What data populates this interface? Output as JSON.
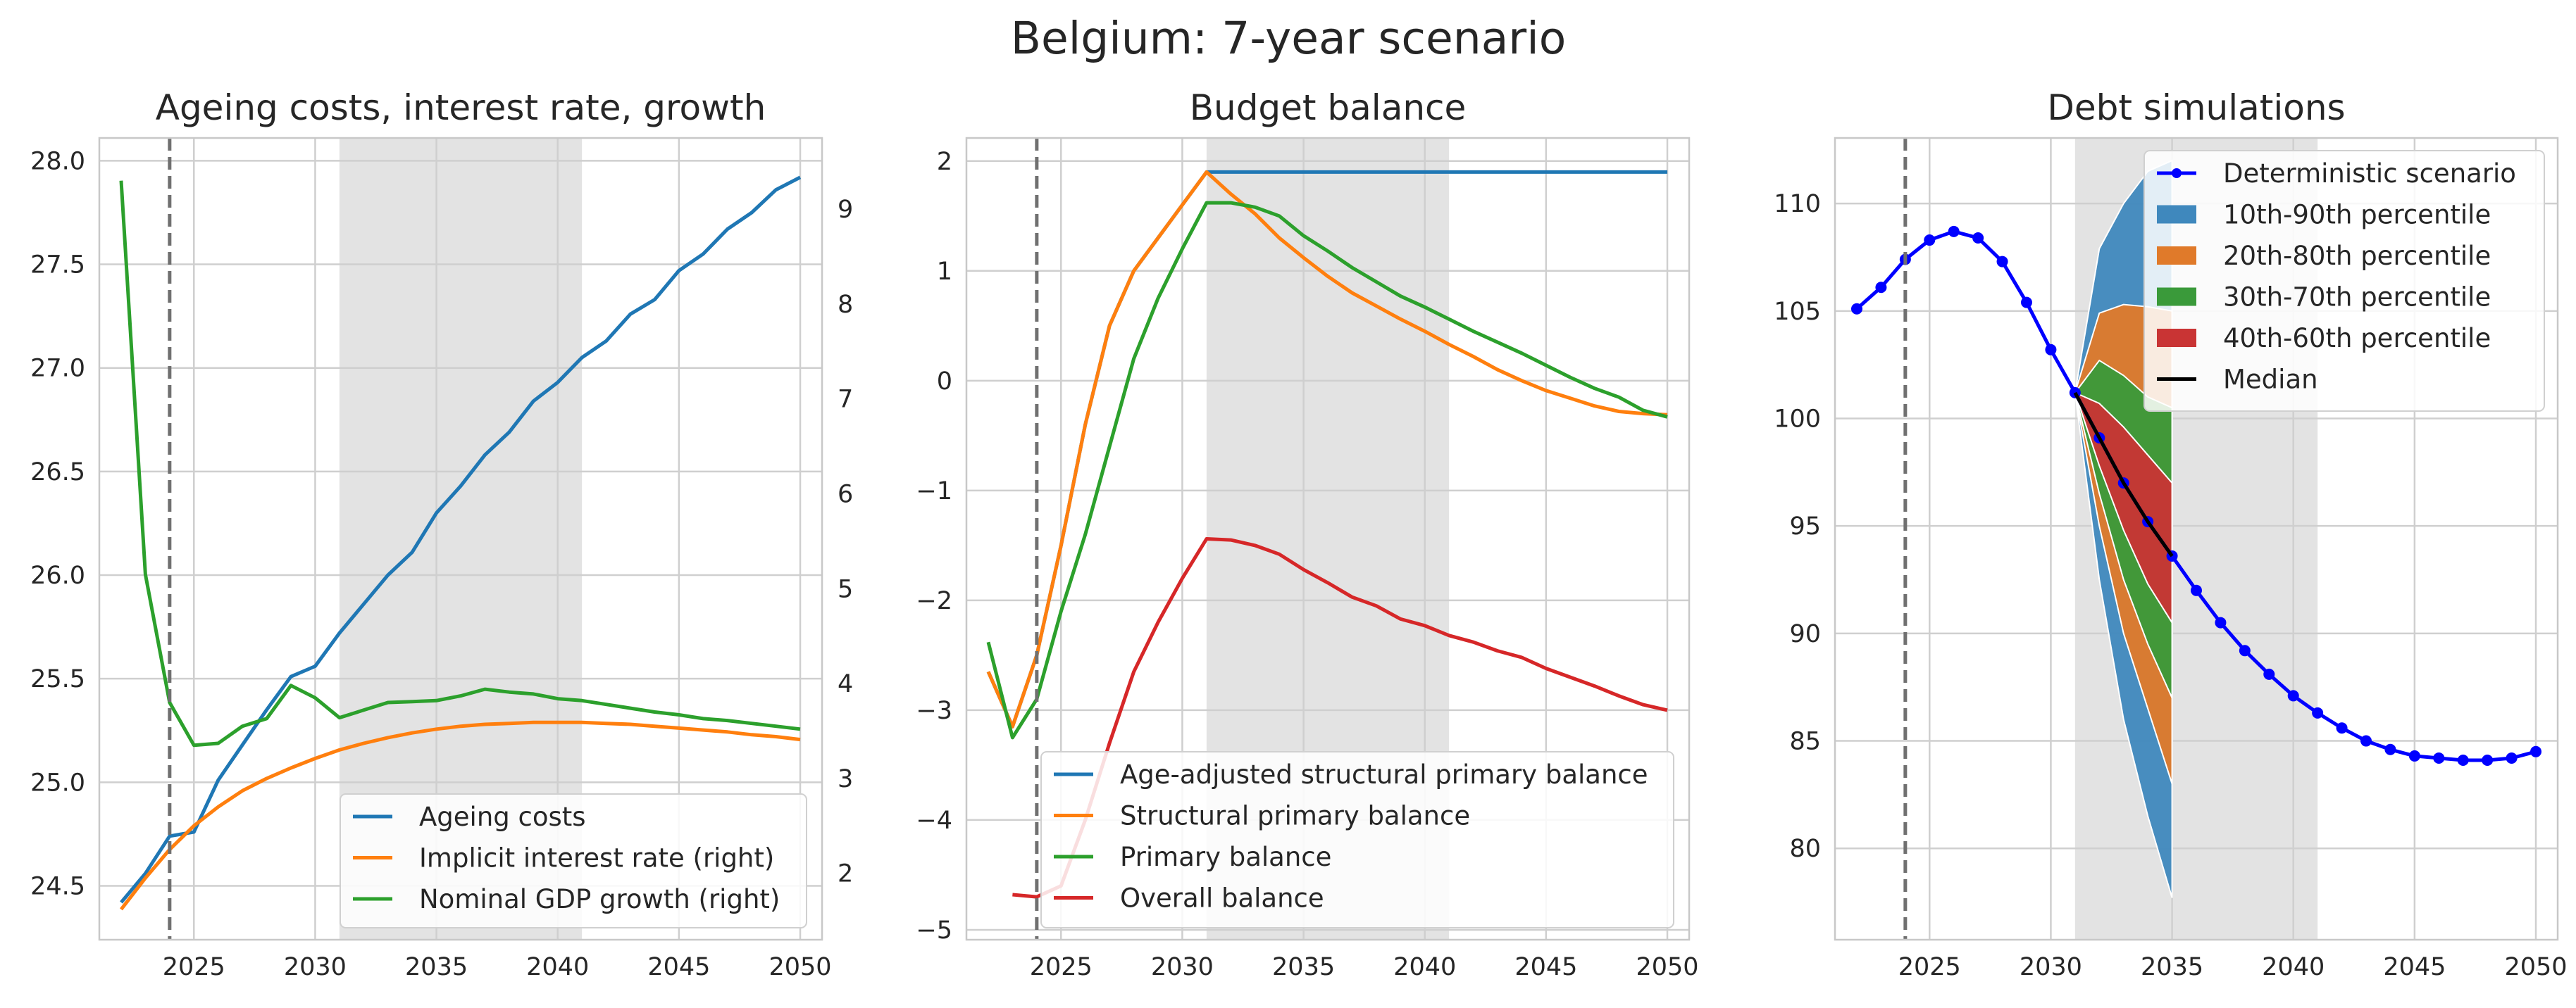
{
  "suptitle": "Belgium: 7-year scenario",
  "chart_data": [
    {
      "type": "line",
      "title": "Ageing costs, interest rate, growth",
      "x": [
        2022,
        2023,
        2024,
        2025,
        2026,
        2027,
        2028,
        2029,
        2030,
        2031,
        2032,
        2033,
        2034,
        2035,
        2036,
        2037,
        2038,
        2039,
        2040,
        2041,
        2042,
        2043,
        2044,
        2045,
        2046,
        2047,
        2048,
        2049,
        2050
      ],
      "xticks": [
        2025,
        2030,
        2035,
        2040,
        2045,
        2050
      ],
      "xlim": [
        2021.1,
        2050.9
      ],
      "ylim": [
        24.24,
        28.11
      ],
      "yticks": [
        "24.5",
        "25.0",
        "25.5",
        "26.0",
        "26.5",
        "27.0",
        "27.5",
        "28.0"
      ],
      "y2lim": [
        1.3,
        9.75
      ],
      "y2ticks": [
        "2",
        "3",
        "4",
        "5",
        "6",
        "7",
        "8",
        "9"
      ],
      "shade": [
        2031,
        2041
      ],
      "vline": 2024,
      "grid": true,
      "legend_position": "lower right",
      "series": [
        {
          "name": "Ageing costs",
          "axis": "left",
          "color": "#1f77b4",
          "values": [
            24.42,
            24.56,
            24.74,
            24.76,
            25.01,
            25.18,
            25.35,
            25.51,
            25.56,
            25.72,
            25.86,
            26.0,
            26.11,
            26.3,
            26.43,
            26.58,
            26.69,
            26.84,
            26.93,
            27.05,
            27.13,
            27.26,
            27.33,
            27.47,
            27.55,
            27.67,
            27.75,
            27.86,
            27.92
          ]
        },
        {
          "name": "Implicit interest rate (right)",
          "axis": "right",
          "color": "#ff7f0e",
          "values": [
            1.62,
            1.95,
            2.25,
            2.5,
            2.7,
            2.87,
            3.0,
            3.11,
            3.21,
            3.3,
            3.37,
            3.43,
            3.48,
            3.52,
            3.55,
            3.57,
            3.58,
            3.59,
            3.59,
            3.59,
            3.58,
            3.57,
            3.55,
            3.53,
            3.51,
            3.49,
            3.46,
            3.44,
            3.41
          ]
        },
        {
          "name": "Nominal GDP growth (right)",
          "axis": "right",
          "color": "#2ca02c",
          "values": [
            9.3,
            5.15,
            3.8,
            3.35,
            3.37,
            3.55,
            3.63,
            3.98,
            3.85,
            3.64,
            3.72,
            3.8,
            3.81,
            3.82,
            3.87,
            3.94,
            3.91,
            3.89,
            3.84,
            3.82,
            3.78,
            3.74,
            3.7,
            3.67,
            3.63,
            3.61,
            3.58,
            3.55,
            3.52
          ]
        }
      ]
    },
    {
      "type": "line",
      "title": "Budget balance",
      "x": [
        2022,
        2023,
        2024,
        2025,
        2026,
        2027,
        2028,
        2029,
        2030,
        2031,
        2032,
        2033,
        2034,
        2035,
        2036,
        2037,
        2038,
        2039,
        2040,
        2041,
        2042,
        2043,
        2044,
        2045,
        2046,
        2047,
        2048,
        2049,
        2050
      ],
      "xticks": [
        2025,
        2030,
        2035,
        2040,
        2045,
        2050
      ],
      "xlim": [
        2021.1,
        2050.9
      ],
      "ylim": [
        -5.09,
        2.21
      ],
      "yticks": [
        "−5",
        "−4",
        "−3",
        "−2",
        "−1",
        "0",
        "1",
        "2"
      ],
      "shade": [
        2031,
        2041
      ],
      "vline": 2024,
      "grid": true,
      "legend_position": "lower right",
      "series": [
        {
          "name": "Age-adjusted structural primary balance",
          "color": "#1f77b4",
          "values": [
            -2.65,
            -3.15,
            -2.5,
            -1.5,
            -0.4,
            0.5,
            1.0,
            1.3,
            1.6,
            1.9,
            1.9,
            1.9,
            1.9,
            1.9,
            1.9,
            1.9,
            1.9,
            1.9,
            1.9,
            1.9,
            1.9,
            1.9,
            1.9,
            1.9,
            1.9,
            1.9,
            1.9,
            1.9,
            1.9
          ]
        },
        {
          "name": "Structural primary balance",
          "color": "#ff7f0e",
          "values": [
            -2.65,
            -3.15,
            -2.5,
            -1.5,
            -0.4,
            0.5,
            1.0,
            1.3,
            1.6,
            1.9,
            1.7,
            1.52,
            1.3,
            1.12,
            0.95,
            0.8,
            0.68,
            0.56,
            0.45,
            0.33,
            0.22,
            0.1,
            0.0,
            -0.09,
            -0.16,
            -0.23,
            -0.28,
            -0.3,
            -0.31
          ]
        },
        {
          "name": "Primary balance",
          "color": "#2ca02c",
          "values": [
            -2.38,
            -3.25,
            -2.9,
            -2.1,
            -1.4,
            -0.6,
            0.2,
            0.75,
            1.2,
            1.62,
            1.62,
            1.58,
            1.5,
            1.32,
            1.18,
            1.03,
            0.9,
            0.77,
            0.67,
            0.56,
            0.45,
            0.35,
            0.25,
            0.14,
            0.03,
            -0.07,
            -0.15,
            -0.27,
            -0.33
          ]
        },
        {
          "name": "Overall balance",
          "color": "#d62728",
          "values": [
            null,
            -4.68,
            -4.7,
            -4.6,
            -4.0,
            -3.3,
            -2.65,
            -2.2,
            -1.8,
            -1.44,
            -1.45,
            -1.5,
            -1.58,
            -1.72,
            -1.84,
            -1.97,
            -2.05,
            -2.17,
            -2.23,
            -2.32,
            -2.38,
            -2.46,
            -2.52,
            -2.62,
            -2.7,
            -2.78,
            -2.87,
            -2.95,
            -3.0
          ]
        }
      ]
    },
    {
      "type": "line",
      "title": "Debt simulations",
      "x": [
        2022,
        2023,
        2024,
        2025,
        2026,
        2027,
        2028,
        2029,
        2030,
        2031,
        2032,
        2033,
        2034,
        2035,
        2036,
        2037,
        2038,
        2039,
        2040,
        2041,
        2042,
        2043,
        2044,
        2045,
        2046,
        2047,
        2048,
        2049,
        2050
      ],
      "xticks": [
        2025,
        2030,
        2035,
        2040,
        2045,
        2050
      ],
      "xlim": [
        2021.1,
        2050.9
      ],
      "ylim": [
        75.75,
        113.05
      ],
      "yticks": [
        "80",
        "85",
        "90",
        "95",
        "100",
        "105",
        "110"
      ],
      "shade": [
        2031,
        2041
      ],
      "vline": 2024,
      "grid": true,
      "legend_position": "upper right",
      "series": [
        {
          "name": "Deterministic scenario",
          "color": "#0000ff",
          "marker": "o",
          "values": [
            105.1,
            106.1,
            107.4,
            108.3,
            108.7,
            108.4,
            107.3,
            105.4,
            103.2,
            101.2,
            99.1,
            97.0,
            95.2,
            93.6,
            92.0,
            90.5,
            89.2,
            88.1,
            87.1,
            86.3,
            85.6,
            85.0,
            84.6,
            84.3,
            84.2,
            84.1,
            84.1,
            84.2,
            84.5
          ]
        },
        {
          "name": "Median",
          "color": "#000000",
          "x": [
            2031,
            2032,
            2033,
            2034,
            2035
          ],
          "values": [
            101.2,
            99.1,
            97.0,
            95.2,
            93.6
          ]
        }
      ],
      "fan": {
        "x": [
          2031,
          2032,
          2033,
          2034,
          2035
        ],
        "bands": [
          {
            "name": "10th-90th percentile",
            "color": "#3f88bd",
            "lower": [
              101.2,
              92.5,
              86.0,
              81.5,
              77.7
            ],
            "upper": [
              101.2,
              107.9,
              110.0,
              111.5,
              112.0
            ]
          },
          {
            "name": "20th-80th percentile",
            "color": "#e07a2a",
            "lower": [
              101.2,
              95.0,
              90.0,
              86.5,
              83.0
            ],
            "upper": [
              101.2,
              104.9,
              105.3,
              105.2,
              105.0
            ]
          },
          {
            "name": "30th-70th percentile",
            "color": "#3a9a3a",
            "lower": [
              101.2,
              96.5,
              92.5,
              89.5,
              87.0
            ],
            "upper": [
              101.2,
              102.7,
              102.0,
              101.0,
              100.5
            ]
          },
          {
            "name": "40th-60th percentile",
            "color": "#c93434",
            "lower": [
              101.2,
              97.8,
              94.8,
              92.3,
              90.5
            ],
            "upper": [
              101.2,
              100.7,
              99.6,
              98.3,
              97.0
            ]
          }
        ]
      }
    }
  ]
}
